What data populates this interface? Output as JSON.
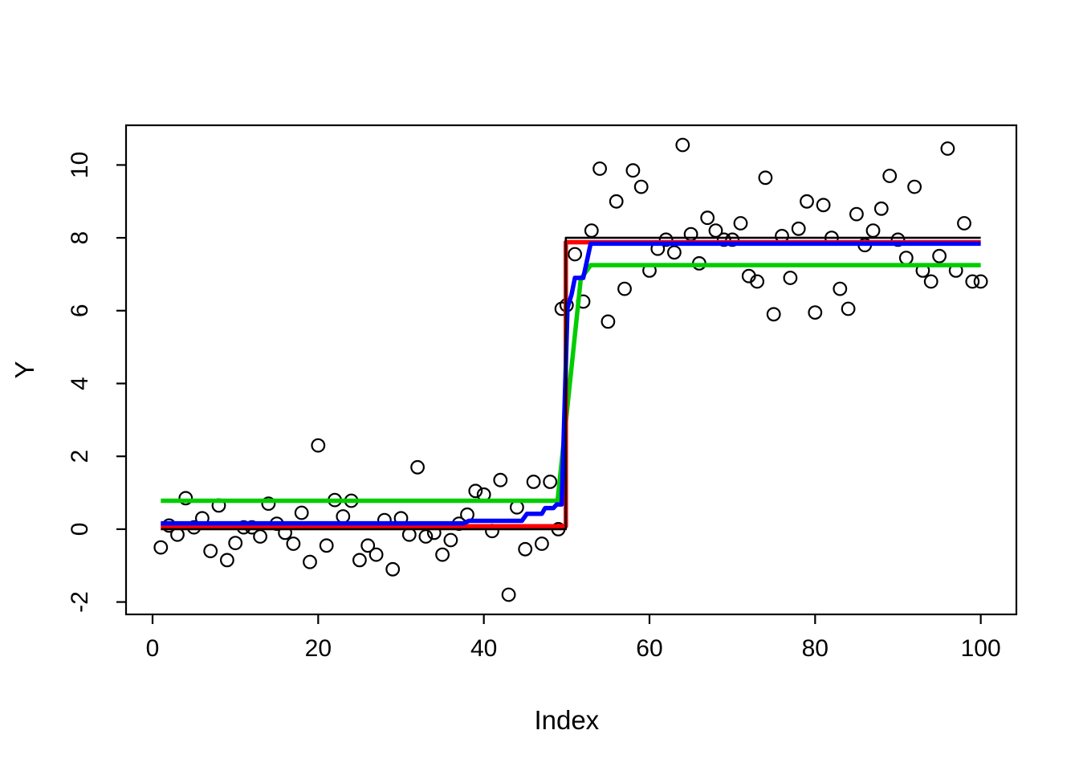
{
  "figure": {
    "background": "#ffffff",
    "kind": "r-base-scatter-plot-with-step-fits"
  },
  "chart_data": {
    "type": "scatter",
    "title": "",
    "xlabel": "Index",
    "ylabel": "Y",
    "grid": false,
    "legend": "none",
    "x_ticks": [
      0,
      20,
      40,
      60,
      80,
      100
    ],
    "y_ticks": [
      -2,
      0,
      2,
      4,
      6,
      8,
      10
    ],
    "x_range": [
      -3.2,
      104.3
    ],
    "y_range": [
      -2.34,
      11.09
    ],
    "point_style": {
      "marker": "open-circle",
      "stroke": "#000000",
      "radius": 7.8,
      "stroke_width": 2.2
    },
    "points": [
      [
        1,
        -0.5
      ],
      [
        2,
        0.1
      ],
      [
        3,
        -0.15
      ],
      [
        4,
        0.85
      ],
      [
        5,
        0.05
      ],
      [
        6,
        0.3
      ],
      [
        7,
        -0.6
      ],
      [
        8,
        0.65
      ],
      [
        9,
        -0.85
      ],
      [
        10,
        -0.38
      ],
      [
        11,
        0.05
      ],
      [
        12,
        0.05
      ],
      [
        13,
        -0.2
      ],
      [
        14,
        0.7
      ],
      [
        15,
        0.15
      ],
      [
        16,
        -0.1
      ],
      [
        17,
        -0.4
      ],
      [
        18,
        0.45
      ],
      [
        19,
        -0.9
      ],
      [
        20,
        2.3
      ],
      [
        21,
        -0.45
      ],
      [
        22,
        0.8
      ],
      [
        23,
        0.35
      ],
      [
        24,
        0.78
      ],
      [
        25,
        -0.85
      ],
      [
        26,
        -0.45
      ],
      [
        27,
        -0.7
      ],
      [
        28,
        0.25
      ],
      [
        29,
        -1.1
      ],
      [
        30,
        0.3
      ],
      [
        31,
        -0.15
      ],
      [
        32,
        1.7
      ],
      [
        33,
        -0.2
      ],
      [
        34,
        -0.1
      ],
      [
        35,
        -0.7
      ],
      [
        36,
        -0.3
      ],
      [
        37,
        0.15
      ],
      [
        38,
        0.4
      ],
      [
        39,
        1.05
      ],
      [
        40,
        0.95
      ],
      [
        41,
        -0.05
      ],
      [
        42,
        1.35
      ],
      [
        43,
        -1.8
      ],
      [
        44,
        0.6
      ],
      [
        45,
        -0.55
      ],
      [
        46,
        1.3
      ],
      [
        47,
        -0.4
      ],
      [
        48,
        1.3
      ],
      [
        49,
        0.0
      ],
      [
        49.4,
        6.05
      ],
      [
        50,
        6.15
      ],
      [
        51,
        7.55
      ],
      [
        52,
        6.25
      ],
      [
        53,
        8.2
      ],
      [
        54,
        9.9
      ],
      [
        55,
        5.7
      ],
      [
        56,
        9.0
      ],
      [
        57,
        6.6
      ],
      [
        58,
        9.85
      ],
      [
        59,
        9.4
      ],
      [
        60,
        7.1
      ],
      [
        61,
        7.7
      ],
      [
        62,
        7.95
      ],
      [
        63,
        7.6
      ],
      [
        64,
        10.55
      ],
      [
        65,
        8.1
      ],
      [
        66,
        7.3
      ],
      [
        67,
        8.55
      ],
      [
        68,
        8.2
      ],
      [
        69,
        7.95
      ],
      [
        70,
        7.95
      ],
      [
        71,
        8.4
      ],
      [
        72,
        6.95
      ],
      [
        73,
        6.8
      ],
      [
        74,
        9.65
      ],
      [
        75,
        5.9
      ],
      [
        76,
        8.05
      ],
      [
        77,
        6.9
      ],
      [
        78,
        8.25
      ],
      [
        79,
        9.0
      ],
      [
        80,
        5.95
      ],
      [
        81,
        8.9
      ],
      [
        82,
        8.0
      ],
      [
        83,
        6.6
      ],
      [
        84,
        6.05
      ],
      [
        85,
        8.65
      ],
      [
        86,
        7.8
      ],
      [
        87,
        8.2
      ],
      [
        88,
        8.8
      ],
      [
        89,
        9.7
      ],
      [
        90,
        7.95
      ],
      [
        91,
        7.45
      ],
      [
        92,
        9.4
      ],
      [
        93,
        7.1
      ],
      [
        94,
        6.8
      ],
      [
        95,
        7.5
      ],
      [
        96,
        10.45
      ],
      [
        97,
        7.1
      ],
      [
        98,
        8.4
      ],
      [
        99,
        6.8
      ],
      [
        100,
        6.8
      ]
    ],
    "series": [
      {
        "name": "green-segment-fit",
        "color": "#00CD00",
        "width": 5.5,
        "points": [
          [
            1,
            0.78
          ],
          [
            48.9,
            0.78
          ],
          [
            51.7,
            6.87
          ],
          [
            52.9,
            7.25
          ],
          [
            100,
            7.25
          ]
        ]
      },
      {
        "name": "red-step-fit",
        "color": "#FF0000",
        "width": 5.5,
        "points": [
          [
            1,
            0.08
          ],
          [
            49.9,
            0.08
          ],
          [
            49.9,
            7.88
          ],
          [
            100,
            7.88
          ]
        ]
      },
      {
        "name": "blue-online-fit",
        "color": "#0000FF",
        "width": 5.5,
        "points": [
          [
            1,
            0.16
          ],
          [
            37.6,
            0.16
          ],
          [
            38.2,
            0.23
          ],
          [
            44.6,
            0.23
          ],
          [
            45.2,
            0.42
          ],
          [
            47.0,
            0.42
          ],
          [
            47.4,
            0.58
          ],
          [
            48.4,
            0.58
          ],
          [
            48.8,
            0.68
          ],
          [
            49.4,
            0.68
          ],
          [
            50.1,
            6.07
          ],
          [
            50.6,
            6.45
          ],
          [
            51.0,
            6.9
          ],
          [
            52.0,
            6.9
          ],
          [
            52.9,
            7.84
          ],
          [
            100,
            7.84
          ]
        ]
      },
      {
        "name": "black-true-mean-step",
        "color": "#000000",
        "width": 2.6,
        "points": [
          [
            1,
            0.0
          ],
          [
            49.9,
            0.0
          ],
          [
            49.9,
            8.0
          ],
          [
            100,
            8.0
          ]
        ]
      }
    ],
    "axis_style": {
      "tick_length": 12,
      "axis_color": "#000000",
      "tick_font_size": 30,
      "title_font_size": 33
    }
  }
}
